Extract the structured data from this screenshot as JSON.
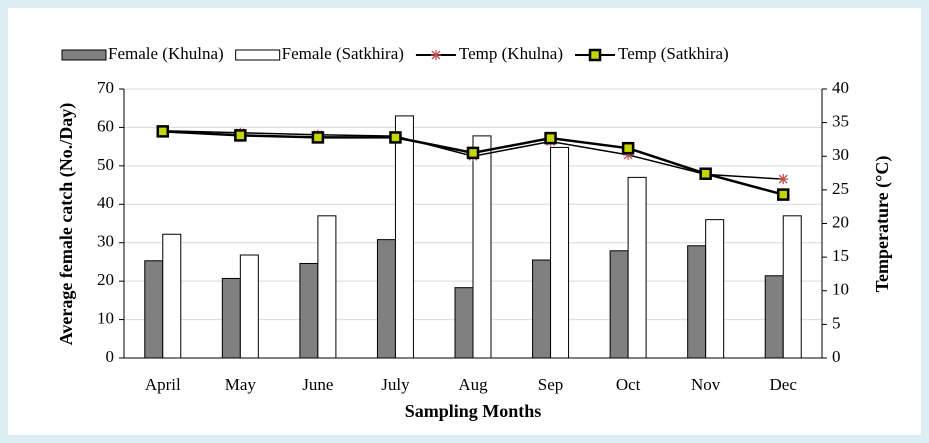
{
  "chart_data": {
    "type": "bar",
    "categories": [
      "April",
      "May",
      "June",
      "July",
      "Aug",
      "Sep",
      "Oct",
      "Nov",
      "Dec"
    ],
    "series": [
      {
        "name": "Female (Khulna)",
        "type": "bar",
        "color": "#808080",
        "values": [
          25.3,
          20.7,
          24.6,
          30.8,
          18.3,
          25.5,
          27.9,
          29.2,
          21.4
        ]
      },
      {
        "name": "Female (Satkhira)",
        "type": "bar",
        "color": "#ffffff",
        "values": [
          32.2,
          26.8,
          37,
          63,
          57.8,
          54.8,
          47,
          36,
          37
        ]
      },
      {
        "name": "Temp (Khulna)",
        "type": "line",
        "axis": "y2",
        "color": "#000000",
        "marker": "asterisk",
        "marker_color": "#c0504d",
        "values": [
          33.8,
          33.5,
          33.2,
          33.0,
          30.0,
          32.2,
          30.2,
          27.3,
          26.6
        ]
      },
      {
        "name": "Temp (Satkhira)",
        "type": "line",
        "axis": "y2",
        "color": "#000000",
        "marker": "square",
        "marker_color": "#c4d600",
        "values": [
          33.7,
          33.1,
          32.8,
          32.8,
          30.5,
          32.7,
          31.2,
          27.4,
          24.3
        ]
      }
    ],
    "ylabel": "Average female catch (No./Day)",
    "y2label": "Temperature (°C)",
    "xlabel": "Sampling Months",
    "ylim": [
      0,
      70
    ],
    "yticks": [
      0,
      10,
      20,
      30,
      40,
      50,
      60,
      70
    ],
    "y2lim": [
      0,
      40
    ],
    "y2ticks": [
      0,
      5,
      10,
      15,
      20,
      25,
      30,
      35,
      40
    ],
    "grid": true,
    "legend": "top"
  }
}
